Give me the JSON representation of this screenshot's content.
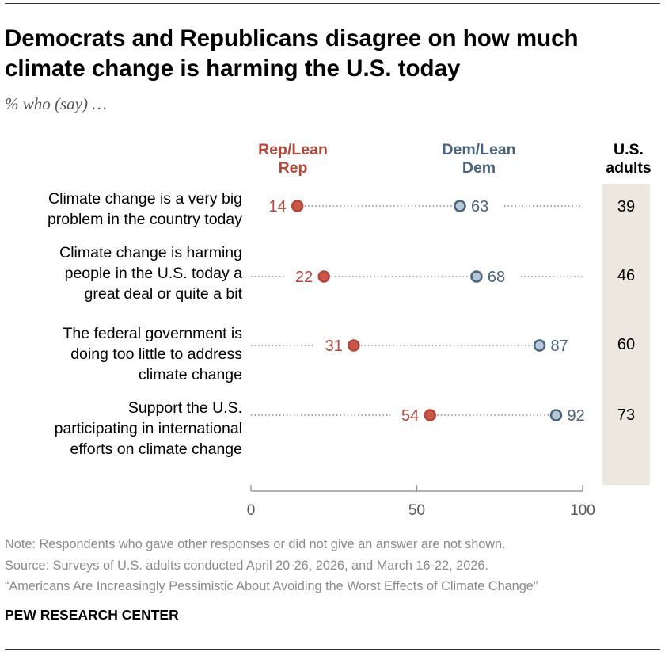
{
  "title": "Democrats and Republicans disagree on how much climate change is harming the U.S. today",
  "subtitle": "% who (say) …",
  "colors": {
    "rep": "#b5473a",
    "rep_fill": "#c9574a",
    "dem": "#49647e",
    "dem_fill": "#b8c7d6",
    "us_band": "#ece8e0"
  },
  "chart_data": {
    "type": "dot",
    "headers": {
      "rep": [
        "Rep/Lean",
        "Rep"
      ],
      "dem": [
        "Dem/Lean",
        "Dem"
      ],
      "us": [
        "U.S.",
        "adults"
      ]
    },
    "rows": [
      {
        "label": [
          "Climate change is a very big",
          "problem in the country today"
        ],
        "rep": 14,
        "dem": 63,
        "us": 39
      },
      {
        "label": [
          "Climate change is harming",
          "people in the U.S. today a",
          "great deal or quite a bit"
        ],
        "rep": 22,
        "dem": 68,
        "us": 46
      },
      {
        "label": [
          "The federal government is",
          "doing too little to address",
          "climate change"
        ],
        "rep": 31,
        "dem": 87,
        "us": 60
      },
      {
        "label": [
          "Support the U.S.",
          "participating in international",
          "efforts on climate change"
        ],
        "rep": 54,
        "dem": 92,
        "us": 73
      }
    ],
    "x_ticks": [
      "0",
      "50",
      "100"
    ],
    "xlim": [
      0,
      100
    ]
  },
  "footer": {
    "note": "Note: Respondents who gave other responses or did not give an answer are not shown.",
    "source": "Source: Surveys of U.S. adults conducted April 20-26, 2026, and March 16-22, 2026.",
    "report": "“Americans Are Increasingly Pessimistic About Avoiding the Worst Effects of Climate Change”",
    "brand": "PEW RESEARCH CENTER"
  }
}
